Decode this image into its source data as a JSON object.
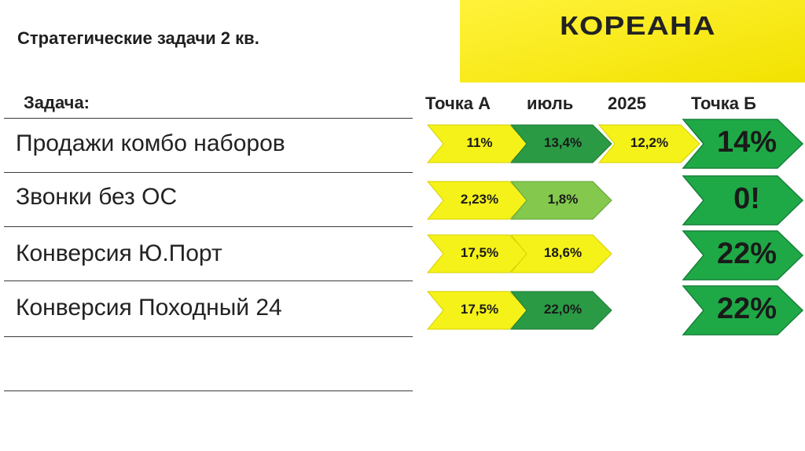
{
  "header": {
    "title": "Стратегические задачи 2 кв.",
    "logo_text": "КОРЕАНА"
  },
  "columns": {
    "task": "Задача:",
    "point_a": "Точка А",
    "july": "июль",
    "year": "2025",
    "point_b": "Точка Б"
  },
  "colors": {
    "yellow": "#f5f21a",
    "dark_green": "#2a9a45",
    "light_green": "#84c84e",
    "target_green": "#1fa946"
  },
  "rows": [
    {
      "task": "Продажи комбо наборов",
      "point_a": "11%",
      "july": "13,4%",
      "year": "12,2%",
      "point_b": "14%"
    },
    {
      "task": "Звонки без ОС",
      "point_a": "2,23%",
      "july": "1,8%",
      "point_b": "0!"
    },
    {
      "task": "Конверсия Ю.Порт",
      "point_a": "17,5%",
      "july": "18,6%",
      "point_b": "22%"
    },
    {
      "task": "Конверсия Походный 24",
      "point_a": "17,5%",
      "july": "22,0%",
      "point_b": "22%"
    }
  ]
}
